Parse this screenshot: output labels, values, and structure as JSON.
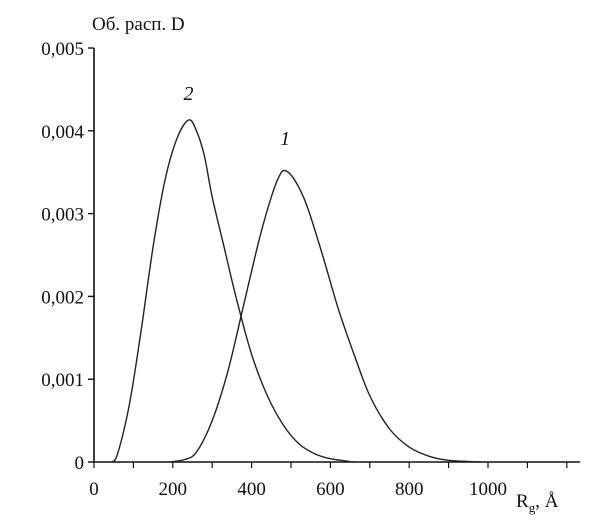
{
  "chart_data": {
    "type": "line",
    "ylabel": "Об. расп. D",
    "xlabel": {
      "main": "R",
      "sub": "g",
      "rest": ", Å"
    },
    "xlim": [
      0,
      1200
    ],
    "ylim": [
      0,
      0.005
    ],
    "xticks": [
      0,
      200,
      400,
      600,
      800,
      1000
    ],
    "xtick_labels": [
      "0",
      "200",
      "400",
      "600",
      "800",
      "1000"
    ],
    "yticks": [
      0,
      0.001,
      0.002,
      0.003,
      0.004,
      0.005
    ],
    "ytick_labels": [
      "0",
      "0,001",
      "0,002",
      "0,003",
      "0,004",
      "0,005"
    ],
    "grid": false,
    "legend": "none",
    "series": [
      {
        "label": "1",
        "label_at": [
          485,
          0.00383
        ],
        "points": [
          [
            190,
            0
          ],
          [
            230,
            3e-05
          ],
          [
            260,
            0.00012
          ],
          [
            300,
            0.0005
          ],
          [
            340,
            0.0011
          ],
          [
            380,
            0.0019
          ],
          [
            420,
            0.0027
          ],
          [
            450,
            0.0032
          ],
          [
            470,
            0.00345
          ],
          [
            485,
            0.00352
          ],
          [
            510,
            0.0034
          ],
          [
            540,
            0.0031
          ],
          [
            580,
            0.0025
          ],
          [
            620,
            0.00185
          ],
          [
            660,
            0.0013
          ],
          [
            700,
            0.0008
          ],
          [
            750,
            0.0004
          ],
          [
            800,
            0.00018
          ],
          [
            850,
            7e-05
          ],
          [
            900,
            2e-05
          ],
          [
            980,
            0
          ]
        ]
      },
      {
        "label": "2",
        "label_at": [
          240,
          0.00437
        ],
        "points": [
          [
            45,
            0
          ],
          [
            60,
            0.0001
          ],
          [
            90,
            0.0007
          ],
          [
            120,
            0.0016
          ],
          [
            150,
            0.0026
          ],
          [
            180,
            0.0034
          ],
          [
            210,
            0.0039
          ],
          [
            240,
            0.00413
          ],
          [
            260,
            0.004
          ],
          [
            280,
            0.0037
          ],
          [
            300,
            0.0032
          ],
          [
            330,
            0.0026
          ],
          [
            360,
            0.002
          ],
          [
            400,
            0.0013
          ],
          [
            440,
            0.0008
          ],
          [
            480,
            0.00045
          ],
          [
            520,
            0.00022
          ],
          [
            560,
            0.0001
          ],
          [
            600,
            4e-05
          ],
          [
            660,
            0
          ]
        ]
      }
    ]
  }
}
